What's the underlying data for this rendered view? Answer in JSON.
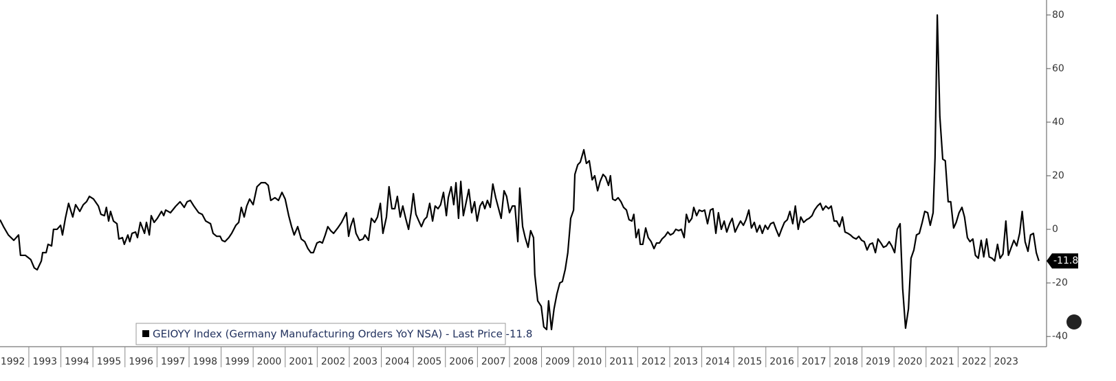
{
  "chart_data": {
    "type": "line",
    "series": [
      {
        "name": "GEIOYY Index (Germany Manufacturing Orders YoY NSA) - Last Price -11.8",
        "color": "#000000",
        "x": [
          1992.1,
          1992.21,
          1992.36,
          1992.53,
          1992.68,
          1992.74,
          1992.89,
          1993.06,
          1993.17,
          1993.26,
          1993.39,
          1993.43,
          1993.54,
          1993.6,
          1993.71,
          1993.77,
          1993.88,
          1993.99,
          1994.05,
          1994.14,
          1994.24,
          1994.37,
          1994.46,
          1994.59,
          1994.7,
          1994.8,
          1994.89,
          1995.02,
          1995.17,
          1995.25,
          1995.36,
          1995.42,
          1995.49,
          1995.55,
          1995.64,
          1995.75,
          1995.81,
          1995.92,
          1995.98,
          1996.09,
          1996.15,
          1996.22,
          1996.33,
          1996.39,
          1996.48,
          1996.61,
          1996.67,
          1996.76,
          1996.82,
          1996.91,
          1997.01,
          1997.14,
          1997.21,
          1997.27,
          1997.42,
          1997.59,
          1997.72,
          1997.85,
          1997.94,
          1998.04,
          1998.15,
          1998.3,
          1998.41,
          1998.52,
          1998.67,
          1998.75,
          1998.86,
          1998.97,
          1999.03,
          1999.12,
          1999.24,
          1999.33,
          1999.46,
          1999.55,
          1999.63,
          1999.72,
          1999.8,
          1999.89,
          2000.0,
          2000.12,
          2000.25,
          2000.38,
          2000.47,
          2000.55,
          2000.68,
          2000.79,
          2000.9,
          2001.0,
          2001.11,
          2001.2,
          2001.28,
          2001.39,
          2001.5,
          2001.61,
          2001.71,
          2001.8,
          2001.88,
          2001.99,
          2002.08,
          2002.16,
          2002.25,
          2002.33,
          2002.42,
          2002.51,
          2002.64,
          2002.76,
          2002.91,
          2002.98,
          2003.04,
          2003.13,
          2003.21,
          2003.32,
          2003.43,
          2003.49,
          2003.6,
          2003.69,
          2003.79,
          2003.88,
          2003.97,
          2004.05,
          2004.16,
          2004.24,
          2004.33,
          2004.42,
          2004.5,
          2004.59,
          2004.67,
          2004.76,
          2004.85,
          2004.93,
          2005.0,
          2005.08,
          2005.17,
          2005.25,
          2005.34,
          2005.42,
          2005.51,
          2005.6,
          2005.68,
          2005.77,
          2005.85,
          2005.94,
          2006.03,
          2006.09,
          2006.18,
          2006.26,
          2006.33,
          2006.41,
          2006.48,
          2006.56,
          2006.65,
          2006.73,
          2006.82,
          2006.91,
          2006.99,
          2007.08,
          2007.16,
          2007.23,
          2007.31,
          2007.4,
          2007.48,
          2007.57,
          2007.66,
          2007.74,
          2007.83,
          2007.91,
          2008.0,
          2008.09,
          2008.17,
          2008.26,
          2008.32,
          2008.41,
          2008.49,
          2008.58,
          2008.66,
          2008.75,
          2008.79,
          2008.88,
          2008.99,
          2009.07,
          2009.16,
          2009.22,
          2009.31,
          2009.39,
          2009.48,
          2009.57,
          2009.65,
          2009.74,
          2009.82,
          2009.91,
          2010.0,
          2010.04,
          2010.13,
          2010.21,
          2010.32,
          2010.4,
          2010.49,
          2010.58,
          2010.66,
          2010.75,
          2010.83,
          2010.92,
          2011.0,
          2011.09,
          2011.15,
          2011.22,
          2011.3,
          2011.39,
          2011.48,
          2011.56,
          2011.65,
          2011.73,
          2011.82,
          2011.88,
          2011.95,
          2012.03,
          2012.08,
          2012.16,
          2012.25,
          2012.33,
          2012.42,
          2012.51,
          2012.59,
          2012.68,
          2012.76,
          2012.85,
          2012.94,
          2013.02,
          2013.11,
          2013.19,
          2013.28,
          2013.36,
          2013.45,
          2013.52,
          2013.6,
          2013.69,
          2013.75,
          2013.84,
          2013.92,
          2014.01,
          2014.09,
          2014.18,
          2014.27,
          2014.35,
          2014.44,
          2014.52,
          2014.61,
          2014.7,
          2014.78,
          2014.87,
          2014.95,
          2015.04,
          2015.12,
          2015.21,
          2015.3,
          2015.38,
          2015.47,
          2015.55,
          2015.64,
          2015.72,
          2015.81,
          2015.89,
          2015.98,
          2016.06,
          2016.15,
          2016.24,
          2016.32,
          2016.41,
          2016.49,
          2016.58,
          2016.67,
          2016.75,
          2016.84,
          2016.92,
          2017.01,
          2017.09,
          2017.18,
          2017.27,
          2017.35,
          2017.44,
          2017.52,
          2017.61,
          2017.7,
          2017.78,
          2017.87,
          2017.96,
          2018.04,
          2018.13,
          2018.21,
          2018.3,
          2018.39,
          2018.47,
          2018.56,
          2018.64,
          2018.73,
          2018.82,
          2018.9,
          2018.99,
          2019.07,
          2019.16,
          2019.24,
          2019.33,
          2019.42,
          2019.5,
          2019.59,
          2019.67,
          2019.76,
          2019.85,
          2019.93,
          2020.02,
          2020.1,
          2020.19,
          2020.27,
          2020.36,
          2020.45,
          2020.53,
          2020.62,
          2020.7,
          2020.79,
          2020.88,
          2020.96,
          2021.05,
          2021.13,
          2021.22,
          2021.28,
          2021.35,
          2021.43,
          2021.52,
          2021.6,
          2021.69,
          2021.77,
          2021.86,
          2021.94,
          2022.03,
          2022.12,
          2022.2,
          2022.29,
          2022.37,
          2022.46,
          2022.54,
          2022.63,
          2022.72,
          2022.8,
          2022.89,
          2022.97,
          2023.06,
          2023.14,
          2023.23,
          2023.31,
          2023.4,
          2023.49,
          2023.57,
          2023.66,
          2023.74,
          2023.83,
          2023.92,
          2024.0,
          2024.09,
          2024.18,
          2024.26,
          2024.35,
          2024.44,
          2024.52
        ],
        "values": [
          3.6,
          1.0,
          -2.1,
          -4.1,
          -2.1,
          -9.7,
          -9.7,
          -11.3,
          -14.4,
          -15.1,
          -11.8,
          -8.7,
          -8.7,
          -5.6,
          -6.2,
          0,
          0,
          1.5,
          -2.1,
          4.1,
          9.7,
          4.6,
          9.2,
          6.7,
          9.2,
          10.3,
          12.3,
          11.3,
          8.7,
          5.6,
          5.1,
          8.2,
          3.1,
          6.7,
          3.1,
          2.1,
          -3.6,
          -3.1,
          -5.6,
          -2.1,
          -4.6,
          -1.5,
          -1.0,
          -3.1,
          2.6,
          -1.5,
          2.6,
          -2.1,
          5.1,
          2.6,
          4.1,
          6.7,
          5.1,
          7.2,
          6.2,
          8.7,
          10.3,
          8.2,
          10.3,
          10.8,
          8.7,
          6.2,
          5.6,
          3.1,
          2.1,
          -1.5,
          -2.6,
          -2.6,
          -4.1,
          -4.6,
          -3.1,
          -1.5,
          1.5,
          2.6,
          8.2,
          4.6,
          8.7,
          11.3,
          9.2,
          15.9,
          17.4,
          17.4,
          16.4,
          10.8,
          11.8,
          10.8,
          13.8,
          11.3,
          5.1,
          1.0,
          -2.1,
          1.0,
          -3.6,
          -4.6,
          -7.2,
          -8.7,
          -8.7,
          -5.1,
          -4.6,
          -5.1,
          -2.1,
          1.0,
          -0.5,
          -1.5,
          0.5,
          2.6,
          6.2,
          -2.6,
          1.0,
          4.1,
          -1.5,
          -4.1,
          -3.6,
          -2.1,
          -4.1,
          4.1,
          2.6,
          4.6,
          9.7,
          -1.5,
          4.6,
          15.9,
          7.7,
          7.7,
          12.3,
          4.6,
          8.7,
          4.1,
          0,
          6.2,
          13.3,
          5.6,
          3.1,
          1.0,
          3.6,
          4.6,
          9.7,
          3.1,
          8.7,
          7.7,
          9.2,
          13.8,
          5.1,
          11.8,
          15.9,
          9.2,
          17.4,
          4.1,
          17.9,
          5.1,
          10.3,
          14.9,
          6.2,
          10.3,
          3.1,
          8.7,
          10.3,
          7.7,
          10.8,
          8.2,
          16.9,
          11.8,
          7.7,
          4.1,
          14.4,
          12.3,
          6.2,
          8.7,
          8.7,
          -4.6,
          15.4,
          1.0,
          -3.1,
          -6.7,
          -0.5,
          -3.1,
          -16.9,
          -26.7,
          -28.7,
          -36.4,
          -37.4,
          -26.7,
          -37.4,
          -29.7,
          -24.1,
          -20.0,
          -19.5,
          -14.9,
          -8.7,
          4.1,
          7.2,
          20.5,
          24.1,
          25.1,
          29.7,
          24.6,
          25.6,
          18.5,
          20.0,
          14.4,
          17.9,
          20.5,
          19.5,
          16.4,
          20.0,
          11.3,
          10.8,
          11.8,
          10.3,
          8.2,
          7.2,
          3.6,
          3.1,
          5.6,
          -3.1,
          0,
          -5.6,
          -5.6,
          0.5,
          -3.1,
          -4.6,
          -7.2,
          -5.1,
          -5.1,
          -3.6,
          -2.6,
          -1.0,
          -2.1,
          -1.5,
          0,
          -0.5,
          0,
          -3.1,
          5.6,
          2.6,
          4.1,
          8.2,
          5.1,
          7.2,
          6.7,
          7.2,
          2.1,
          7.2,
          7.7,
          -1.5,
          6.2,
          0,
          3.1,
          -1.0,
          2.1,
          4.1,
          -1.0,
          1.0,
          3.1,
          1.5,
          3.6,
          7.2,
          0.5,
          2.6,
          -1.0,
          1.5,
          -1.5,
          1.5,
          0,
          2.1,
          2.6,
          0,
          -2.6,
          0,
          2.6,
          3.6,
          6.7,
          2.1,
          8.7,
          0,
          4.6,
          2.6,
          3.6,
          4.1,
          5.1,
          7.2,
          8.7,
          9.7,
          7.2,
          8.7,
          7.7,
          8.7,
          3.1,
          3.1,
          1.0,
          4.6,
          -1.0,
          -1.5,
          -2.1,
          -3.1,
          -3.6,
          -2.6,
          -4.1,
          -4.6,
          -7.7,
          -5.6,
          -5.1,
          -8.7,
          -3.6,
          -5.1,
          -6.7,
          -6.2,
          -4.6,
          -6.2,
          -8.7,
          0,
          2.1,
          -22.1,
          -36.9,
          -29.7,
          -10.8,
          -7.7,
          -2.1,
          -1.5,
          2.6,
          6.7,
          6.2,
          1.5,
          6.2,
          26.7,
          80.0,
          42.1,
          26.2,
          25.6,
          10.3,
          10.3,
          0.5,
          2.6,
          6.2,
          8.2,
          4.6,
          -3.1,
          -4.6,
          -3.6,
          -9.7,
          -10.8,
          -4.1,
          -10.3,
          -3.6,
          -10.3,
          -10.8,
          -11.8,
          -5.6,
          -10.8,
          -9.2,
          3.1,
          -9.7,
          -6.7,
          -4.1,
          -6.2,
          -1.5,
          6.7,
          -4.6,
          -8.2,
          -2.1,
          -1.5,
          -8.7,
          -11.8
        ]
      }
    ],
    "xlim": [
      1992.1,
      2024.76
    ],
    "xticks": [
      {
        "value": 1992,
        "label": "1992"
      },
      {
        "value": 1993,
        "label": "1993"
      },
      {
        "value": 1994,
        "label": "1994"
      },
      {
        "value": 1995,
        "label": "1995"
      },
      {
        "value": 1996,
        "label": "1996"
      },
      {
        "value": 1997,
        "label": "1997"
      },
      {
        "value": 1998,
        "label": "1998"
      },
      {
        "value": 1999,
        "label": "1999"
      },
      {
        "value": 2000,
        "label": "2000"
      },
      {
        "value": 2001,
        "label": "2001"
      },
      {
        "value": 2002,
        "label": "2002"
      },
      {
        "value": 2003,
        "label": "2003"
      },
      {
        "value": 2004,
        "label": "2004"
      },
      {
        "value": 2005,
        "label": "2005"
      },
      {
        "value": 2006,
        "label": "2006"
      },
      {
        "value": 2007,
        "label": "2007"
      },
      {
        "value": 2008,
        "label": "2008"
      },
      {
        "value": 2009,
        "label": "2009"
      },
      {
        "value": 2010,
        "label": "2010"
      },
      {
        "value": 2011,
        "label": "2011"
      },
      {
        "value": 2012,
        "label": "2012"
      },
      {
        "value": 2013,
        "label": "2013"
      },
      {
        "value": 2014,
        "label": "2014"
      },
      {
        "value": 2015,
        "label": "2015"
      },
      {
        "value": 2016,
        "label": "2016"
      },
      {
        "value": 2017,
        "label": "2017"
      },
      {
        "value": 2018,
        "label": "2018"
      },
      {
        "value": 2019,
        "label": "2019"
      },
      {
        "value": 2020,
        "label": "2020"
      },
      {
        "value": 2021,
        "label": "2021"
      },
      {
        "value": 2022,
        "label": "2022"
      },
      {
        "value": 2023,
        "label": "2023"
      }
    ],
    "ylim": [
      -43.8,
      85.6
    ],
    "yticks": [
      -40,
      -20,
      0,
      20,
      40,
      60,
      80
    ],
    "legend": "bottom-left"
  }
}
